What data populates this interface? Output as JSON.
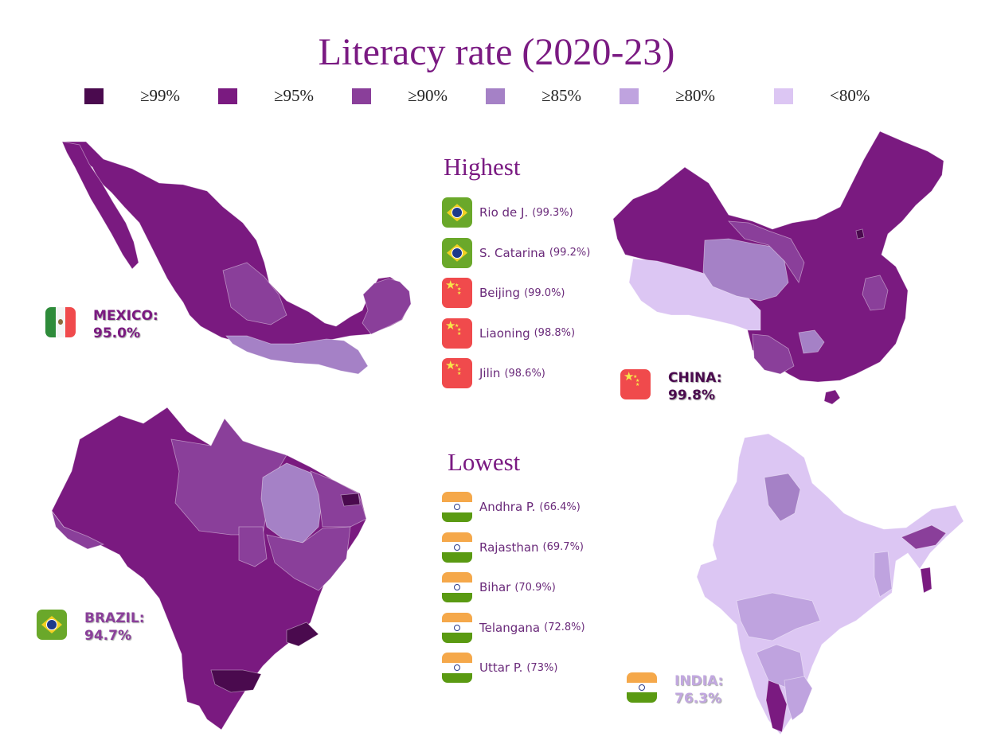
{
  "title": "Literacy rate (2020-23)",
  "legend": [
    {
      "label": "≥99%",
      "color": "#4a0a4e"
    },
    {
      "label": "≥95%",
      "color": "#7a1a80"
    },
    {
      "label": "≥90%",
      "color": "#8a3f9a"
    },
    {
      "label": "≥85%",
      "color": "#a581c6"
    },
    {
      "label": "≥80%",
      "color": "#bfa3df"
    },
    {
      "label": "<80%",
      "color": "#dcc6f3"
    }
  ],
  "countries": {
    "mexico": {
      "name": "MEXICO:",
      "value": "95.0%",
      "flag": "mexico-flag",
      "label_color": "#7a1a80"
    },
    "china": {
      "name": "CHINA:",
      "value": "99.8%",
      "flag": "china-flag",
      "label_color": "#4a0a4e"
    },
    "brazil": {
      "name": "BRAZIL:",
      "value": "94.7%",
      "flag": "brazil-flag",
      "label_color": "#8a3f9a"
    },
    "india": {
      "name": "INDIA:",
      "value": "76.3%",
      "flag": "india-flag",
      "label_color": "#c2a8e0"
    }
  },
  "highest": {
    "title": "Highest",
    "items": [
      {
        "name": "Rio de J.",
        "value": "(99.3%)",
        "flag": "brazil-flag"
      },
      {
        "name": "S. Catarina",
        "value": "(99.2%)",
        "flag": "brazil-flag"
      },
      {
        "name": "Beijing",
        "value": "(99.0%)",
        "flag": "china-flag"
      },
      {
        "name": "Liaoning",
        "value": "(98.8%)",
        "flag": "china-flag"
      },
      {
        "name": "Jilin",
        "value": "(98.6%)",
        "flag": "china-flag"
      }
    ]
  },
  "lowest": {
    "title": "Lowest",
    "items": [
      {
        "name": "Andhra P.",
        "value": "(66.4%)",
        "flag": "india-flag"
      },
      {
        "name": "Rajasthan",
        "value": "(69.7%)",
        "flag": "india-flag"
      },
      {
        "name": "Bihar",
        "value": "(70.9%)",
        "flag": "india-flag"
      },
      {
        "name": "Telangana",
        "value": "(72.8%)",
        "flag": "india-flag"
      },
      {
        "name": "Uttar P.",
        "value": "(73%)",
        "flag": "india-flag"
      }
    ]
  }
}
